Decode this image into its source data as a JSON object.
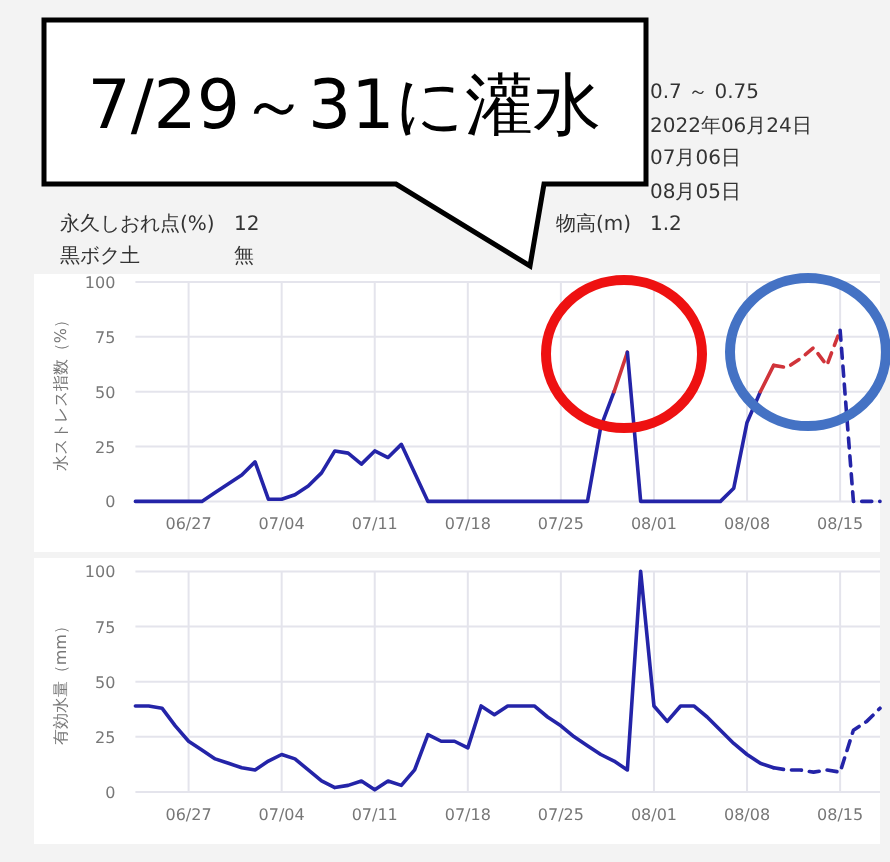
{
  "chart_data": [
    {
      "type": "other",
      "annotations": [
        "永久しおれ点(%)",
        "12",
        "黒ボク土",
        "無",
        "0.7 ～ 0.75",
        "2022年06月24日",
        "07月06日",
        "08月05日",
        "物高(m)",
        "1.2"
      ]
    },
    {
      "type": "line",
      "ylabel": "水ストレス指数（%）",
      "annotations": [
        "7/29～31に灌水"
      ],
      "xlim": [
        "--06-23",
        "--08-18"
      ],
      "ylim": [
        0,
        100
      ],
      "yticks": [
        0,
        25,
        50,
        75,
        100
      ],
      "xticks": [
        {
          "value": "--06-27",
          "label": "06/27"
        },
        {
          "value": "--07-04",
          "label": "07/04"
        },
        {
          "value": "--07-11",
          "label": "07/11"
        },
        {
          "value": "--07-18",
          "label": "07/18"
        },
        {
          "value": "--07-25",
          "label": "07/25"
        },
        {
          "value": "--08-01",
          "label": "08/01"
        },
        {
          "value": "--08-08",
          "label": "08/08"
        },
        {
          "value": "--08-15",
          "label": "08/15"
        }
      ],
      "grid": true,
      "marker": "none",
      "series": [
        {
          "color": "#2424a8",
          "line_style": "solid",
          "x": [
            "--06-23",
            "--06-28",
            "--06-29",
            "--06-30",
            "--07-01",
            "--07-02",
            "--07-03",
            "--07-04",
            "--07-05",
            "--07-06",
            "--07-07",
            "--07-08",
            "--07-09",
            "--07-10",
            "--07-11",
            "--07-12",
            "--07-13",
            "--07-15",
            "--07-27",
            "--07-28",
            "--07-29"
          ],
          "values": [
            0,
            0,
            4,
            8,
            12,
            18,
            1,
            1,
            3,
            7,
            13,
            23,
            22,
            17,
            23,
            20,
            26,
            0,
            0,
            34,
            50
          ]
        },
        {
          "color": "#d0343a",
          "line_style": "solid",
          "x": [
            "--07-29",
            "--07-30"
          ],
          "values": [
            50,
            68
          ]
        },
        {
          "color": "#2424a8",
          "line_style": "solid",
          "x": [
            "--07-30",
            "--07-31",
            "--08-06",
            "--08-07",
            "--08-08",
            "--08-09"
          ],
          "values": [
            68,
            0,
            0,
            6,
            36,
            50
          ]
        },
        {
          "color": "#d0343a",
          "line_style": "solid",
          "x": [
            "--08-09",
            "--08-10"
          ],
          "values": [
            50,
            62
          ]
        },
        {
          "color": "#d0343a",
          "line_style": "dashed",
          "x": [
            "--08-10",
            "--08-11",
            "--08-12",
            "--08-13",
            "--08-14",
            "--08-15"
          ],
          "values": [
            62,
            61,
            65,
            70,
            62,
            78
          ]
        },
        {
          "color": "#2424a8",
          "line_style": "dashed",
          "x": [
            "--08-15",
            "--08-16",
            "--08-18"
          ],
          "values": [
            78,
            0,
            0
          ]
        }
      ]
    },
    {
      "type": "line",
      "ylabel": "有効水量（mm）",
      "xlim": [
        "--06-23",
        "--08-18"
      ],
      "ylim": [
        0,
        100
      ],
      "yticks": [
        0,
        25,
        50,
        75,
        100
      ],
      "xticks": [
        {
          "value": "--06-27",
          "label": "06/27"
        },
        {
          "value": "--07-04",
          "label": "07/04"
        },
        {
          "value": "--07-11",
          "label": "07/11"
        },
        {
          "value": "--07-18",
          "label": "07/18"
        },
        {
          "value": "--07-25",
          "label": "07/25"
        },
        {
          "value": "--08-01",
          "label": "08/01"
        },
        {
          "value": "--08-08",
          "label": "08/08"
        },
        {
          "value": "--08-15",
          "label": "08/15"
        }
      ],
      "grid": true,
      "marker": "none",
      "series": [
        {
          "color": "#2424a8",
          "line_style": "solid",
          "x": [
            "--06-23",
            "--06-24",
            "--06-25",
            "--06-26",
            "--06-27",
            "--06-28",
            "--06-29",
            "--06-30",
            "--07-01",
            "--07-02",
            "--07-03",
            "--07-04",
            "--07-05",
            "--07-06",
            "--07-07",
            "--07-08",
            "--07-09",
            "--07-10",
            "--07-11",
            "--07-12",
            "--07-13",
            "--07-14",
            "--07-15",
            "--07-16",
            "--07-17",
            "--07-18",
            "--07-19",
            "--07-20",
            "--07-21",
            "--07-22",
            "--07-23",
            "--07-24",
            "--07-25",
            "--07-26",
            "--07-27",
            "--07-28",
            "--07-29",
            "--07-30",
            "--07-31",
            "--08-01",
            "--08-02",
            "--08-03",
            "--08-04",
            "--08-05",
            "--08-06",
            "--08-07",
            "--08-08",
            "--08-09",
            "--08-10"
          ],
          "values": [
            39,
            39,
            38,
            30,
            23,
            19,
            15,
            13,
            11,
            10,
            14,
            17,
            15,
            10,
            5,
            2,
            3,
            5,
            1,
            5,
            3,
            10,
            26,
            23,
            23,
            20,
            39,
            35,
            39,
            39,
            39,
            34,
            30,
            25,
            21,
            17,
            14,
            10,
            100,
            39,
            32,
            39,
            39,
            34,
            28,
            22,
            17,
            13,
            11
          ]
        },
        {
          "color": "#2424a8",
          "line_style": "dashed",
          "x": [
            "--08-10",
            "--08-11",
            "--08-12",
            "--08-13",
            "--08-14",
            "--08-15",
            "--08-16",
            "--08-17",
            "--08-18"
          ],
          "values": [
            11,
            10,
            10,
            9,
            10,
            9,
            28,
            32,
            38
          ]
        }
      ]
    }
  ]
}
